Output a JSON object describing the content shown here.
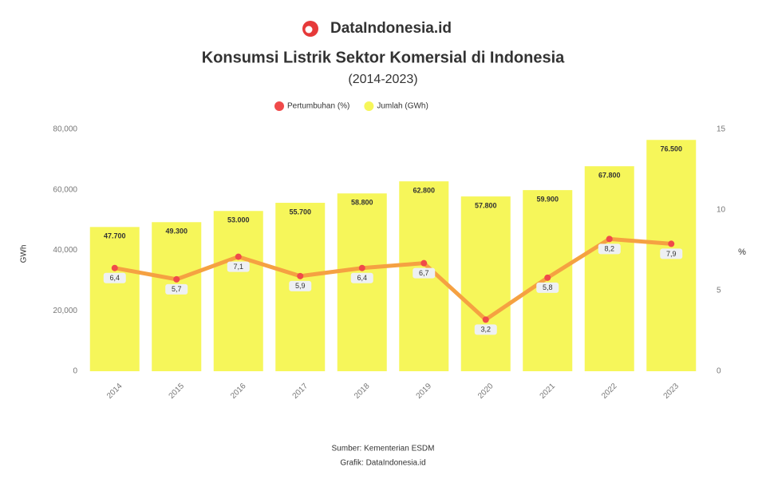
{
  "chart_data": {
    "type": "bar-line",
    "brand": "DataIndonesia.id",
    "title": "Konsumsi Listrik Sektor Komersial di Indonesia",
    "subtitle": "(2014-2023)",
    "y_label": "GWh",
    "y2_label": "%",
    "categories": [
      "2014",
      "2015",
      "2016",
      "2017",
      "2018",
      "2019",
      "2020",
      "2021",
      "2022",
      "2023"
    ],
    "series": [
      {
        "name": "Pertumbuhan (%)",
        "type": "line",
        "axis": "y2",
        "color": "#f5a142",
        "marker_color": "#f04a4a",
        "values": [
          6.4,
          5.7,
          7.1,
          5.9,
          6.4,
          6.7,
          3.2,
          5.8,
          8.2,
          7.9
        ],
        "value_labels": [
          "6,4",
          "5,7",
          "7,1",
          "5,9",
          "6,4",
          "6,7",
          "3,2",
          "5,8",
          "8,2",
          "7,9"
        ]
      },
      {
        "name": "Jumlah (GWh)",
        "type": "bar",
        "color": "#f6f65a",
        "values": [
          47700,
          49300,
          53000,
          55700,
          58800,
          62800,
          57800,
          59900,
          67800,
          76500
        ],
        "value_labels": [
          "47.700",
          "49.300",
          "53.000",
          "55.700",
          "58.800",
          "62.800",
          "57.800",
          "59.900",
          "67.800",
          "76.500"
        ]
      }
    ],
    "ylim": [
      0,
      80000
    ],
    "yticks": [
      0,
      {
        "value": 20000,
        "label": "20,000"
      },
      {
        "value": 40000,
        "label": "40,000"
      },
      {
        "value": 60000,
        "label": "60,000"
      },
      {
        "value": 80000,
        "label": "80,000"
      }
    ],
    "y2lim": [
      0,
      15
    ],
    "y2ticks": [
      0,
      5,
      10,
      15
    ],
    "grid": false,
    "legend": "top",
    "source": [
      "Sumber: Kementerian ESDM",
      "Grafik: DataIndonesia.id"
    ]
  }
}
